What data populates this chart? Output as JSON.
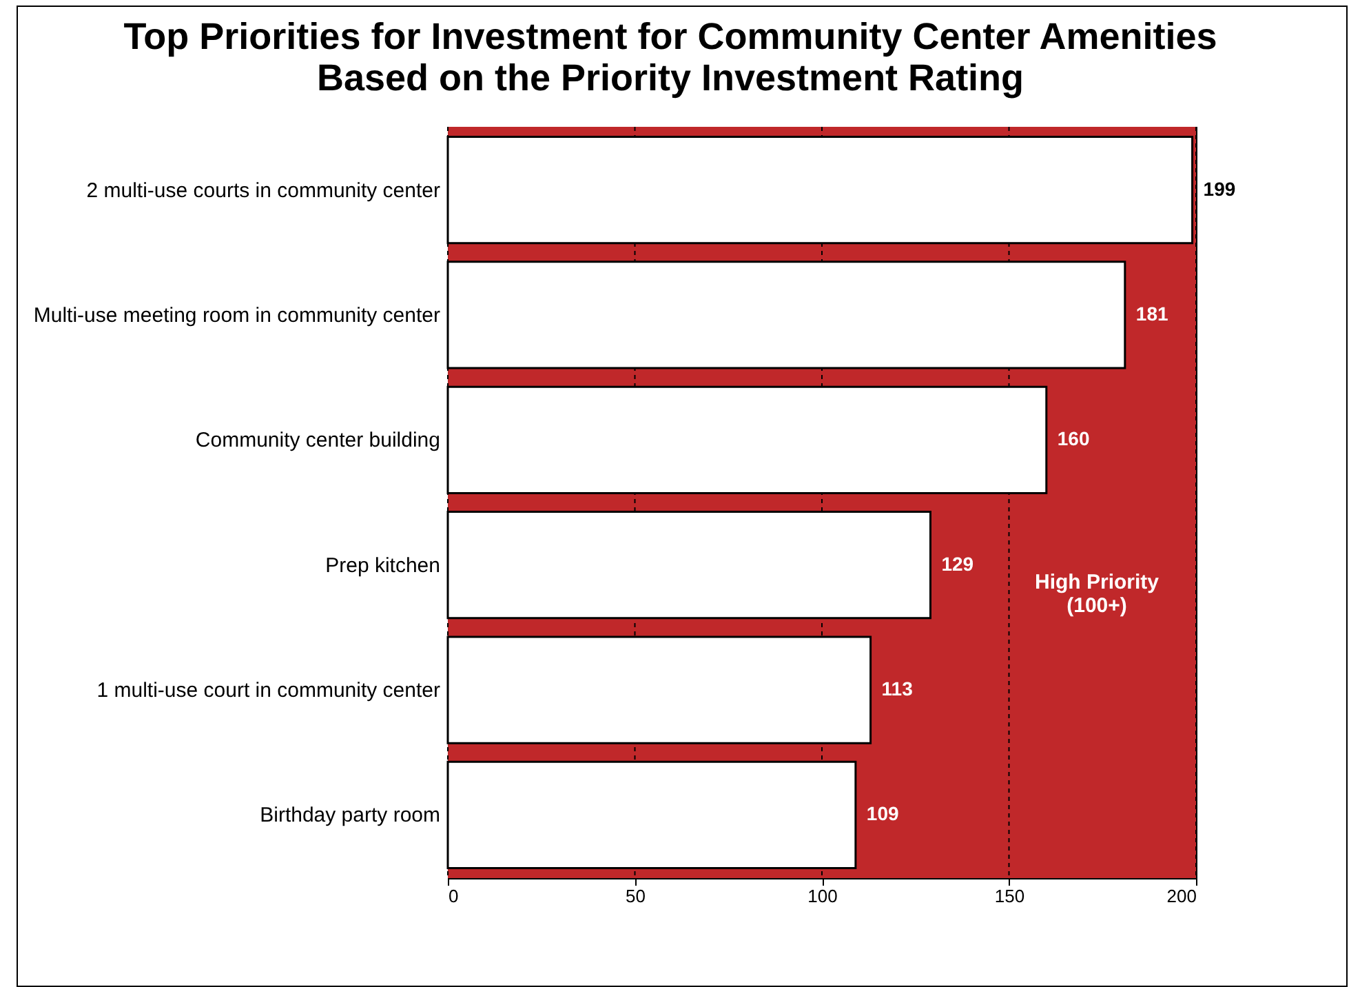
{
  "chart_data": {
    "type": "bar",
    "orientation": "horizontal",
    "title": "Top Priorities for Investment for Community Center Amenities",
    "subtitle": "Based on the Priority Investment Rating",
    "categories": [
      "2 multi-use courts in community center",
      "Multi-use meeting room in community center",
      "Community center building",
      "Prep kitchen",
      "1 multi-use court in community center",
      "Birthday party room"
    ],
    "values": [
      199,
      181,
      160,
      129,
      113,
      109
    ],
    "color": "#ffffff",
    "data_labels": true,
    "xlim": [
      0,
      200
    ],
    "xticks": [
      0,
      50,
      100,
      150,
      200
    ],
    "grid": "x",
    "bands": [
      {
        "axis": "x",
        "from": 0,
        "to": 200,
        "label": "High Priority\n(100+)",
        "color": "#c0282a"
      }
    ]
  }
}
